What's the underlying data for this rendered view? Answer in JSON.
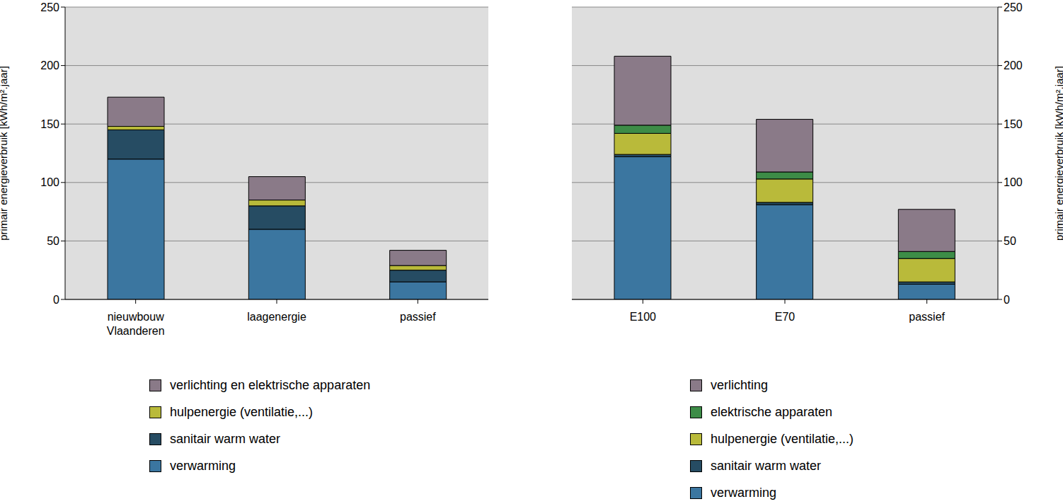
{
  "chart_data": [
    {
      "type": "bar",
      "stacked": true,
      "grid": true,
      "legend": "bottom",
      "y_label": "primair energieverbruik [kWh/m².jaar]",
      "categories": [
        "nieuwbouw Vlaanderen",
        "laagenergie",
        "passief"
      ],
      "ylim": [
        0,
        250
      ],
      "yticks": [
        0,
        50,
        100,
        150,
        200,
        250
      ],
      "series": [
        {
          "name": "verwarming",
          "color": "#3b76a0",
          "values": [
            120,
            60,
            15
          ]
        },
        {
          "name": "sanitair warm water",
          "color": "#264c63",
          "values": [
            25,
            20,
            10
          ]
        },
        {
          "name": "hulpenergie (ventilatie,...)",
          "color": "#b9ba3a",
          "values": [
            3,
            5,
            4
          ]
        },
        {
          "name": "verlichting en elektrische apparaten",
          "color": "#8a7a88",
          "values": [
            25,
            20,
            13
          ]
        }
      ]
    },
    {
      "type": "bar",
      "stacked": true,
      "grid": true,
      "legend": "bottom",
      "y_label": "primair energieverbruik [kWh/m².jaar]",
      "categories": [
        "E100",
        "E70",
        "passief"
      ],
      "ylim": [
        0,
        250
      ],
      "yticks": [
        0,
        50,
        100,
        150,
        200,
        250
      ],
      "series": [
        {
          "name": "verwarming",
          "color": "#3b76a0",
          "values": [
            122,
            81,
            13
          ]
        },
        {
          "name": "sanitair warm water",
          "color": "#264c63",
          "values": [
            2,
            2,
            2
          ]
        },
        {
          "name": "hulpenergie (ventilatie,...)",
          "color": "#b9ba3a",
          "values": [
            18,
            20,
            20
          ]
        },
        {
          "name": "elektrische apparaten",
          "color": "#3d8c47",
          "values": [
            7,
            6,
            6
          ]
        },
        {
          "name": "verlichting",
          "color": "#8a7a88",
          "values": [
            59,
            45,
            36
          ]
        }
      ]
    }
  ]
}
